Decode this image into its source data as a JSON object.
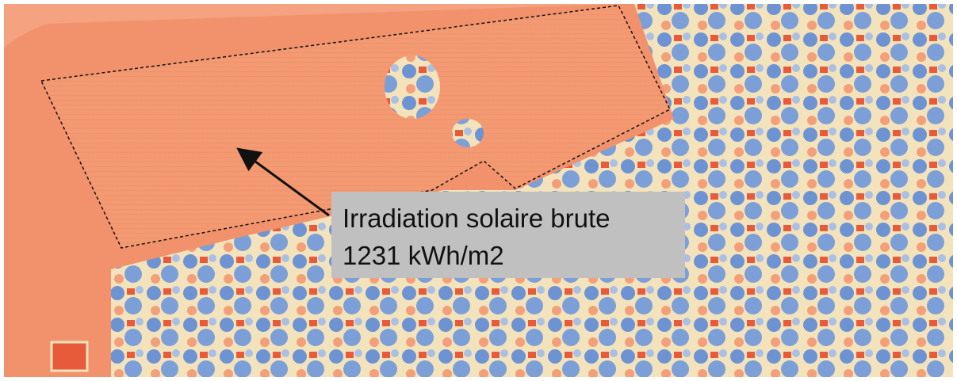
{
  "annotation": {
    "lines": [
      "Irradiation solaire brute",
      "1231 kWh/m2"
    ]
  }
}
